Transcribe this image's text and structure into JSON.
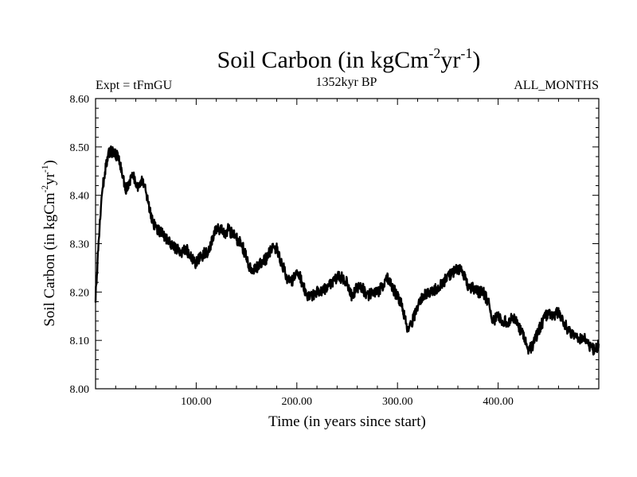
{
  "chart_data": {
    "type": "line",
    "title": "Soil Carbon (in kgCm-2yr-1)",
    "title_parts": {
      "base": "Soil Carbon (in kgCm",
      "sup1": "-2",
      "mid": "yr",
      "sup2": "-1",
      "end": ")"
    },
    "experiment": "Expt = tFmGU",
    "period": "1352kyr BP",
    "months": "ALL_MONTHS",
    "xlabel": "Time (in years since start)",
    "ylabel": "Soil Carbon (in kgCm-2yr-1)",
    "ylabel_parts": {
      "base": "Soil Carbon (in kgCm",
      "sup1": "-2",
      "mid": "yr",
      "sup2": "-1",
      "end": ")"
    },
    "xlim": [
      0,
      500
    ],
    "ylim": [
      8.0,
      8.6
    ],
    "x_ticks": [
      100,
      200,
      300,
      400
    ],
    "x_tick_labels": [
      "100.00",
      "200.00",
      "300.00",
      "400.00"
    ],
    "y_ticks": [
      8.0,
      8.1,
      8.2,
      8.3,
      8.4,
      8.5,
      8.6
    ],
    "y_tick_labels": [
      "8.00",
      "8.10",
      "8.20",
      "8.30",
      "8.40",
      "8.50",
      "8.60"
    ],
    "series": [
      {
        "name": "Soil Carbon",
        "color": "#000000",
        "noise_amplitude": 0.012,
        "x": [
          0,
          3,
          6,
          10,
          14,
          18,
          22,
          26,
          30,
          34,
          38,
          42,
          46,
          50,
          54,
          58,
          62,
          66,
          70,
          75,
          80,
          85,
          90,
          95,
          100,
          104,
          108,
          112,
          116,
          120,
          124,
          128,
          132,
          136,
          140,
          145,
          150,
          155,
          160,
          165,
          170,
          175,
          180,
          185,
          190,
          195,
          200,
          205,
          210,
          215,
          220,
          225,
          230,
          235,
          240,
          245,
          250,
          255,
          260,
          265,
          270,
          275,
          280,
          285,
          290,
          295,
          300,
          305,
          310,
          315,
          320,
          325,
          330,
          335,
          340,
          345,
          350,
          355,
          360,
          365,
          370,
          375,
          380,
          385,
          390,
          395,
          400,
          405,
          410,
          415,
          420,
          425,
          430,
          435,
          440,
          445,
          450,
          455,
          460,
          465,
          470,
          475,
          480,
          485,
          490,
          495,
          500
        ],
        "y": [
          8.19,
          8.3,
          8.4,
          8.46,
          8.49,
          8.49,
          8.48,
          8.45,
          8.41,
          8.43,
          8.44,
          8.42,
          8.43,
          8.41,
          8.37,
          8.34,
          8.33,
          8.32,
          8.31,
          8.3,
          8.29,
          8.28,
          8.29,
          8.27,
          8.26,
          8.27,
          8.28,
          8.28,
          8.31,
          8.33,
          8.33,
          8.32,
          8.33,
          8.32,
          8.31,
          8.3,
          8.27,
          8.24,
          8.25,
          8.26,
          8.27,
          8.29,
          8.29,
          8.26,
          8.23,
          8.22,
          8.25,
          8.22,
          8.19,
          8.19,
          8.2,
          8.2,
          8.21,
          8.22,
          8.23,
          8.23,
          8.22,
          8.19,
          8.21,
          8.21,
          8.19,
          8.2,
          8.2,
          8.21,
          8.23,
          8.21,
          8.19,
          8.17,
          8.12,
          8.14,
          8.17,
          8.19,
          8.2,
          8.2,
          8.21,
          8.22,
          8.23,
          8.24,
          8.25,
          8.24,
          8.21,
          8.21,
          8.2,
          8.2,
          8.18,
          8.14,
          8.15,
          8.14,
          8.14,
          8.15,
          8.13,
          8.11,
          8.08,
          8.09,
          8.12,
          8.14,
          8.16,
          8.15,
          8.16,
          8.14,
          8.12,
          8.11,
          8.1,
          8.11,
          8.09,
          8.08,
          8.09
        ]
      }
    ]
  }
}
